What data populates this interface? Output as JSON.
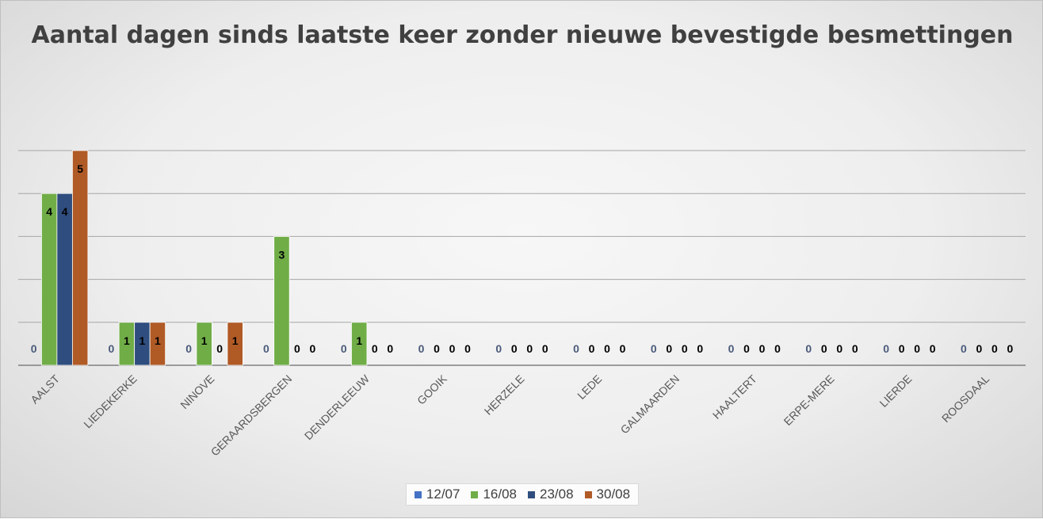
{
  "chart_data": {
    "type": "bar",
    "title": "Aantal dagen sinds laatste keer zonder nieuwe bevestigde besmettingen",
    "categories": [
      "AALST",
      "LIEDEKERKE",
      "NINOVE",
      "GERAARDSBERGEN",
      "DENDERLEEUW",
      "GOOIK",
      "HERZELE",
      "LEDE",
      "GALMAARDEN",
      "HAALTERT",
      "ERPE-MERE",
      "LIERDE",
      "ROOSDAAL"
    ],
    "series": [
      {
        "name": "12/07",
        "color": "#4472c4",
        "values": [
          0,
          0,
          0,
          0,
          0,
          0,
          0,
          0,
          0,
          0,
          0,
          0,
          0
        ]
      },
      {
        "name": "16/08",
        "color": "#70ad47",
        "values": [
          4,
          1,
          1,
          3,
          1,
          0,
          0,
          0,
          0,
          0,
          0,
          0,
          0
        ]
      },
      {
        "name": "23/08",
        "color": "#2f4d7e",
        "values": [
          4,
          1,
          0,
          0,
          0,
          0,
          0,
          0,
          0,
          0,
          0,
          0,
          0
        ]
      },
      {
        "name": "30/08",
        "color": "#b05a26",
        "values": [
          5,
          1,
          1,
          0,
          0,
          0,
          0,
          0,
          0,
          0,
          0,
          0,
          0
        ]
      }
    ],
    "ylim": [
      0,
      5
    ],
    "grid": true,
    "legend": "bottom",
    "data_label_colors": {
      "12/07": "#4a5a7a",
      "16/08": "#000000",
      "23/08": "#000000",
      "30/08": "#000000"
    }
  }
}
